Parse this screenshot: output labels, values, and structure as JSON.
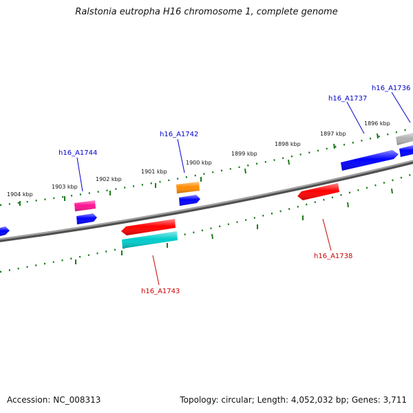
{
  "title": "Ralstonia eutropha H16 chromosome 1, complete genome",
  "footer": {
    "accession": "Accession: NC_008313",
    "summary": "Topology: circular; Length: 4,052,032 bp; Genes: 3,711"
  },
  "colors": {
    "forward_label": "#0000cc",
    "reverse_label": "#cc0000",
    "tick": "#1a7a1a",
    "backbone": "#808080"
  },
  "ticks": [
    {
      "label": "1904 kbp"
    },
    {
      "label": "1903 kbp"
    },
    {
      "label": "1902 kbp"
    },
    {
      "label": "1901 kbp"
    },
    {
      "label": "1900 kbp"
    },
    {
      "label": "1899 kbp"
    },
    {
      "label": "1898 kbp"
    },
    {
      "label": "1897 kbp"
    },
    {
      "label": "1896 kbp"
    }
  ],
  "gene_labels": [
    {
      "name": "h16_A1744",
      "strand": "forward"
    },
    {
      "name": "h16_A1742",
      "strand": "forward"
    },
    {
      "name": "h16_A1737",
      "strand": "forward"
    },
    {
      "name": "h16_A1736",
      "strand": "forward"
    },
    {
      "name": "h16_A1743",
      "strand": "reverse"
    },
    {
      "name": "h16_A1738",
      "strand": "reverse"
    }
  ],
  "genes": [
    {
      "id": "blue-left-edge",
      "color": "#0000ff",
      "strand": "forward"
    },
    {
      "id": "h16_A1744",
      "color": "#ff1493",
      "strand": "forward"
    },
    {
      "id": "blue-under-1744",
      "color": "#0000ff",
      "strand": "forward"
    },
    {
      "id": "h16_A1742",
      "color": "#ff8c00",
      "strand": "forward"
    },
    {
      "id": "blue-under-1742",
      "color": "#0000ff",
      "strand": "forward"
    },
    {
      "id": "h16_A1737",
      "color": "#0000ff",
      "strand": "forward"
    },
    {
      "id": "h16_A1736",
      "color": "#b0b0b0",
      "strand": "forward"
    },
    {
      "id": "blue-right-edge",
      "color": "#0000ff",
      "strand": "forward"
    },
    {
      "id": "red-backbone-1743",
      "color": "#ff0000",
      "strand": "reverse"
    },
    {
      "id": "h16_A1743",
      "color": "#00cccc",
      "strand": "reverse"
    },
    {
      "id": "h16_A1738",
      "color": "#ff0000",
      "strand": "reverse"
    }
  ]
}
